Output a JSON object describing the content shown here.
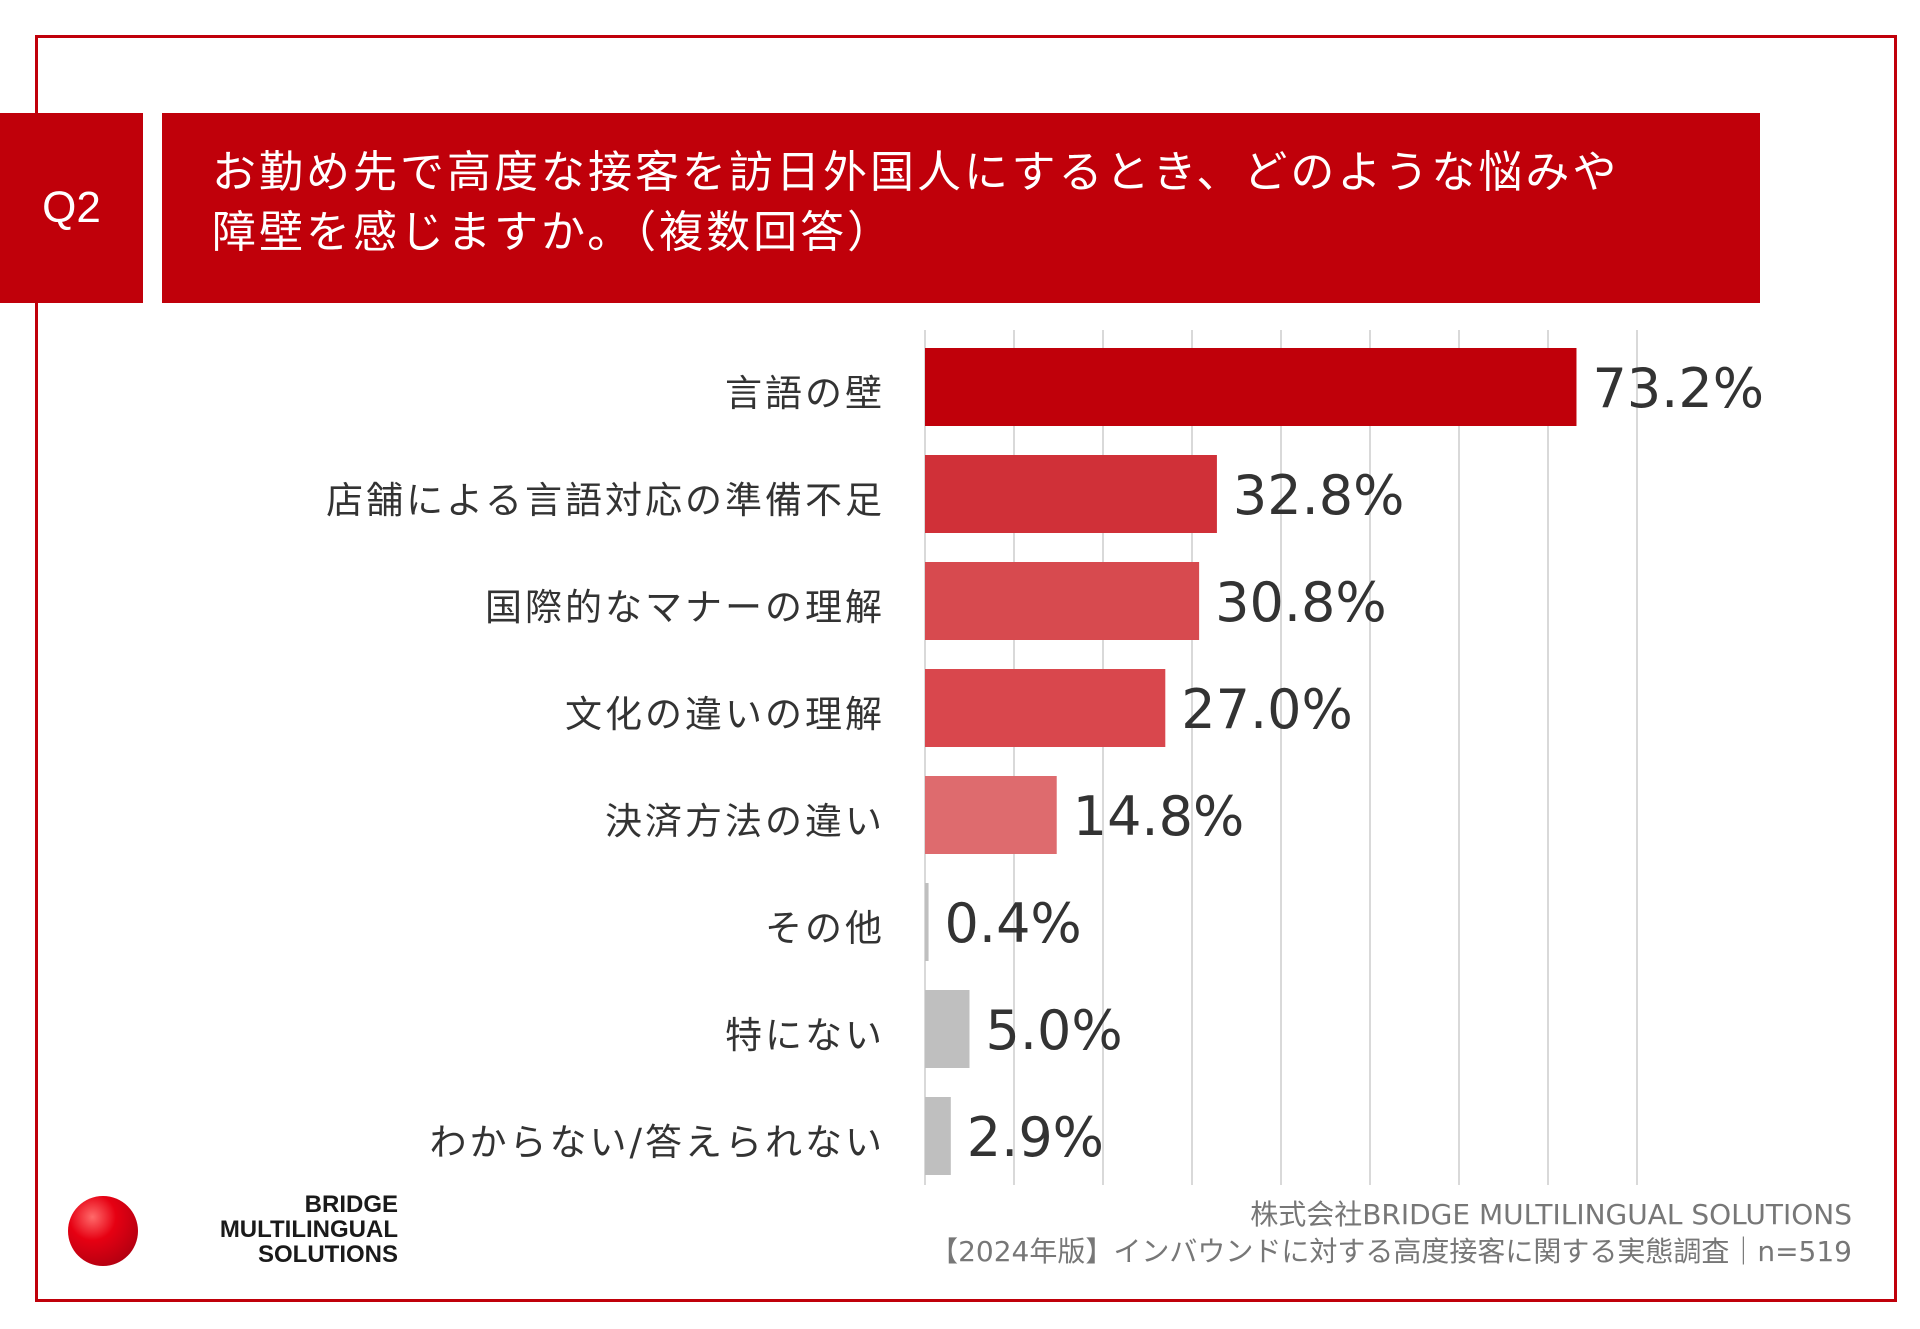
{
  "header": {
    "question_no": "Q2",
    "title_line1": "お勤め先で高度な接客を訪日外国人にするとき、どのような悩みや",
    "title_line2": "障壁を感じますか。（複数回答）"
  },
  "colors": {
    "frame": "#c0000a",
    "bars": [
      "#c0000a",
      "#d03038",
      "#d74a4f",
      "#d9474d",
      "#de6b6e",
      "#bfbfbf",
      "#bfbfbf",
      "#bfbfbf"
    ],
    "grid": "#d9d9d9"
  },
  "chart_data": {
    "type": "bar",
    "orientation": "horizontal",
    "categories": [
      "言語の壁",
      "店舗による言語対応の準備不足",
      "国際的なマナーの理解",
      "文化の違いの理解",
      "決済方法の違い",
      "その他",
      "特にない",
      "わからない/答えられない"
    ],
    "values": [
      73.2,
      32.8,
      30.8,
      27.0,
      14.8,
      0.4,
      5.0,
      2.9
    ],
    "value_labels": [
      "73.2%",
      "32.8%",
      "30.8%",
      "27.0%",
      "14.8%",
      "0.4%",
      "5.0%",
      "2.9%"
    ],
    "xlim": [
      0,
      80
    ],
    "grid": true,
    "title": "",
    "xlabel": "",
    "ylabel": ""
  },
  "logo": {
    "line1": "BRIDGE",
    "line2": "MULTILINGUAL",
    "line3": "SOLUTIONS"
  },
  "footer": {
    "company": "株式会社BRIDGE MULTILINGUAL SOLUTIONS",
    "survey": "【2024年版】インバウンドに対する高度接客に関する実態調査｜n=519"
  }
}
